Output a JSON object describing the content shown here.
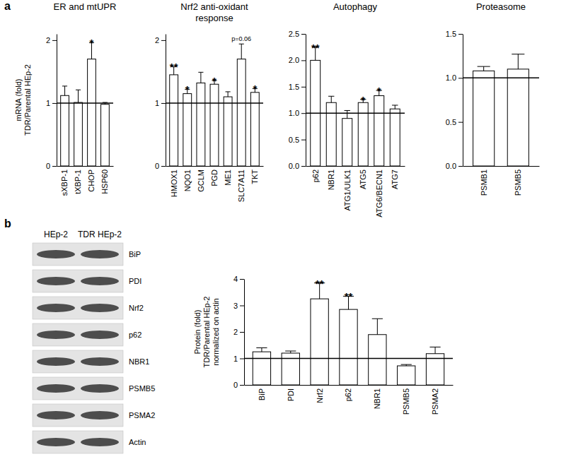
{
  "panels": [
    "a",
    "b"
  ],
  "western_blot": {
    "columns": [
      "HEp-2",
      "TDR HEp-2"
    ],
    "rows": [
      "BiP",
      "PDI",
      "Nrf2",
      "p62",
      "NBR1",
      "PSMB5",
      "PSMA2",
      "Actin"
    ]
  },
  "chart_data": [
    {
      "type": "bar",
      "title": "ER and mtUPR",
      "y_label": "mRNA (fold)\nTDR/Parental HEp-2",
      "categories": [
        "sXBP-1",
        "tXBP-1",
        "CHOP",
        "HSP60"
      ],
      "values": [
        1.12,
        1.01,
        1.7,
        0.98
      ],
      "errors": [
        0.15,
        0.2,
        0.26,
        0.03
      ],
      "significance": [
        null,
        null,
        "*",
        null
      ],
      "reference_line": 1,
      "color": "#ffffff",
      "ylim": [
        0,
        2.1
      ],
      "yticks": [
        0,
        1,
        2
      ]
    },
    {
      "type": "bar",
      "title": "Nrf2 anti-oxidant\nresponse",
      "categories": [
        "HMOX1",
        "NQO1",
        "GCLM",
        "PGD",
        "ME1",
        "SLC7A11",
        "TKT"
      ],
      "values": [
        1.45,
        1.15,
        1.32,
        1.3,
        1.1,
        1.7,
        1.17
      ],
      "errors": [
        0.13,
        0.07,
        0.17,
        0.06,
        0.08,
        0.24,
        0.06
      ],
      "significance": [
        "**",
        "*",
        null,
        "*",
        null,
        "p=0.06",
        "*"
      ],
      "reference_line": 1,
      "color": "#ffffff",
      "ylim": [
        0,
        2.1
      ],
      "yticks": [
        0,
        1,
        2
      ]
    },
    {
      "type": "bar",
      "title": "Autophagy",
      "categories": [
        "p62",
        "NBR1",
        "ATG1/ULK1",
        "ATG5",
        "ATG6/BECN1",
        "ATG7"
      ],
      "values": [
        2.0,
        1.2,
        0.9,
        1.2,
        1.33,
        1.08
      ],
      "errors": [
        0.25,
        0.12,
        0.15,
        0.06,
        0.1,
        0.07
      ],
      "significance": [
        "**",
        null,
        null,
        "*",
        "*",
        null
      ],
      "reference_line": 1,
      "color": "#ffffff",
      "ylim": [
        0,
        2.5
      ],
      "yticks": [
        {
          "value": 0,
          "label": "0.0"
        },
        0.5,
        {
          "value": 1,
          "label": "1.0"
        },
        1.5,
        {
          "value": 2,
          "label": "2.0"
        },
        2.5
      ]
    },
    {
      "type": "bar",
      "title": "Proteasome",
      "categories": [
        "PSMB1",
        "PSMB5"
      ],
      "values": [
        1.08,
        1.1
      ],
      "errors": [
        0.05,
        0.17
      ],
      "significance": [
        null,
        null
      ],
      "reference_line": 1,
      "color": "#ffffff",
      "ylim": [
        0,
        1.5
      ],
      "yticks": [
        {
          "value": 0,
          "label": "0.0"
        },
        0.5,
        {
          "value": 1,
          "label": "1.0"
        },
        1.5
      ]
    },
    {
      "type": "bar",
      "y_label": "Protein (fold)\nTDR/Parental HEp-2\nnormalized on actin",
      "categories": [
        "BiP",
        "PDI",
        "Nrf2",
        "p62",
        "NBR1",
        "PSMB5",
        "PSMA2"
      ],
      "values": [
        1.25,
        1.2,
        3.25,
        2.85,
        1.9,
        0.72,
        1.18
      ],
      "errors": [
        0.15,
        0.08,
        0.6,
        0.5,
        0.6,
        0.05,
        0.25
      ],
      "significance": [
        null,
        null,
        "**",
        "**",
        null,
        null,
        null
      ],
      "reference_line": 1,
      "color": "#ffffff",
      "ylim": [
        0,
        4
      ],
      "yticks": [
        0,
        1,
        2,
        3,
        4
      ]
    }
  ]
}
